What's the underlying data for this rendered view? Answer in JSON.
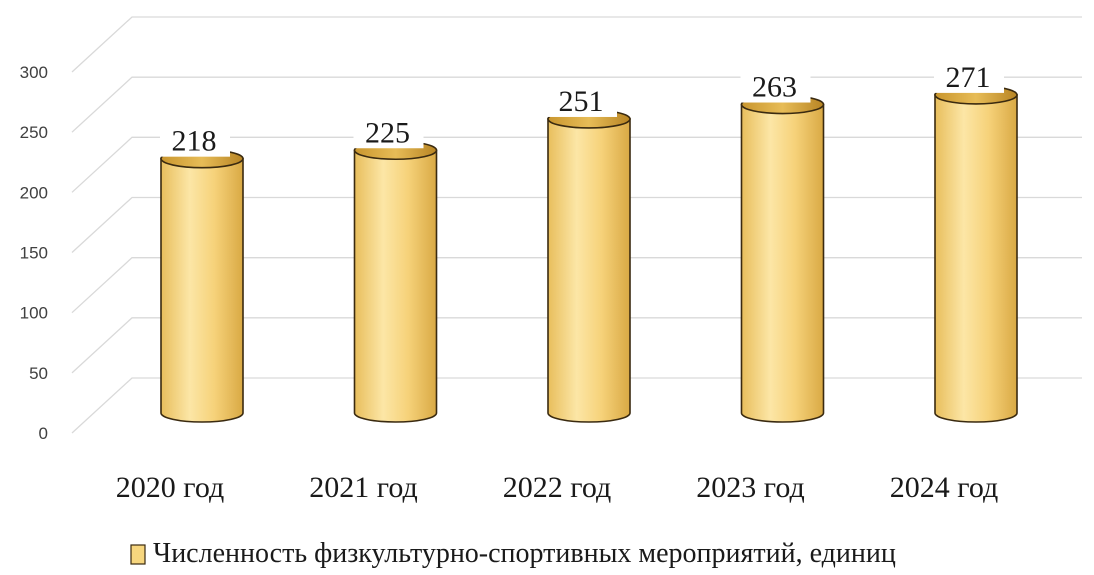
{
  "chart_data": {
    "type": "bar",
    "style": "3d-cylinder",
    "categories": [
      "2020 год",
      "2021 год",
      "2022 год",
      "2023 год",
      "2024 год"
    ],
    "series": [
      {
        "name": "Численность физкультурно-спортивных мероприятий, единиц",
        "values": [
          218,
          225,
          251,
          263,
          271
        ]
      }
    ],
    "ylim": [
      0,
      300
    ],
    "yticks": [
      0,
      50,
      100,
      150,
      200,
      250,
      300
    ],
    "grid": true,
    "legend": "bottom",
    "colors": {
      "bar_fill": "#F7D67E",
      "bar_edge": "#3a2a10",
      "grid": "#d9d9d9"
    }
  }
}
